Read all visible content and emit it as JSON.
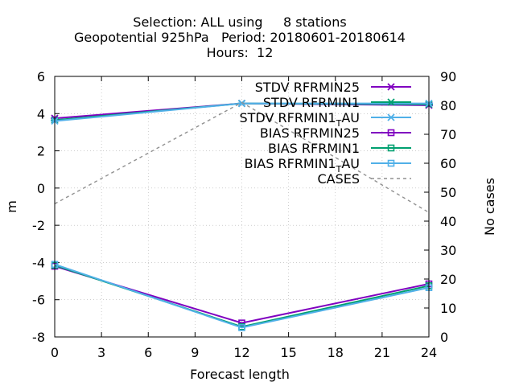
{
  "chart_data": {
    "type": "line",
    "title_lines": [
      "Selection: ALL using     8 stations",
      "Geopotential 925hPa   Period: 20180601-20180614",
      "Hours:  12"
    ],
    "xlabel": "Forecast length",
    "ylabel": "m",
    "y2label": "No cases",
    "x_ticks": [
      0,
      3,
      6,
      9,
      12,
      15,
      18,
      21,
      24
    ],
    "y_ticks": [
      6,
      4,
      2,
      0,
      -2,
      -4,
      -6,
      -8
    ],
    "y2_ticks": [
      90,
      80,
      70,
      60,
      50,
      40,
      30,
      20,
      10,
      0
    ],
    "xlim": [
      0,
      24
    ],
    "ylim": [
      -8,
      6
    ],
    "y2lim": [
      0,
      90
    ],
    "legend_position": "top-right",
    "series": [
      {
        "name": "STDV RFRMIN25",
        "marker": "x",
        "color": "#8000c0",
        "axis": "y1",
        "dash": false,
        "x": [
          0,
          12,
          24
        ],
        "values": [
          3.75,
          4.55,
          4.45
        ]
      },
      {
        "name": "STDV RFRMIN1",
        "marker": "x",
        "color": "#00a070",
        "axis": "y1",
        "dash": false,
        "x": [
          0,
          12,
          24
        ],
        "values": [
          3.65,
          4.55,
          4.5
        ]
      },
      {
        "name": "STDV RFRMIN1_AU",
        "marker": "x",
        "color": "#50b0e8",
        "axis": "y1",
        "dash": false,
        "x": [
          0,
          12,
          24
        ],
        "values": [
          3.6,
          4.55,
          4.55
        ]
      },
      {
        "name": "BIAS RFRMIN25",
        "marker": "square",
        "color": "#8000c0",
        "axis": "y1",
        "dash": false,
        "x": [
          0,
          12,
          24
        ],
        "values": [
          -4.2,
          -7.25,
          -5.15
        ]
      },
      {
        "name": "BIAS RFRMIN1",
        "marker": "square",
        "color": "#00a070",
        "axis": "y1",
        "dash": false,
        "x": [
          0,
          12,
          24
        ],
        "values": [
          -4.15,
          -7.45,
          -5.25
        ]
      },
      {
        "name": "BIAS RFRMIN1_AU",
        "marker": "square",
        "color": "#50b0e8",
        "axis": "y1",
        "dash": false,
        "x": [
          0,
          12,
          24
        ],
        "values": [
          -4.1,
          -7.5,
          -5.35
        ]
      },
      {
        "name": "CASES",
        "marker": "none",
        "color": "#909090",
        "axis": "y2",
        "dash": true,
        "x": [
          0,
          12,
          24
        ],
        "values": [
          46,
          81,
          43
        ]
      }
    ]
  }
}
